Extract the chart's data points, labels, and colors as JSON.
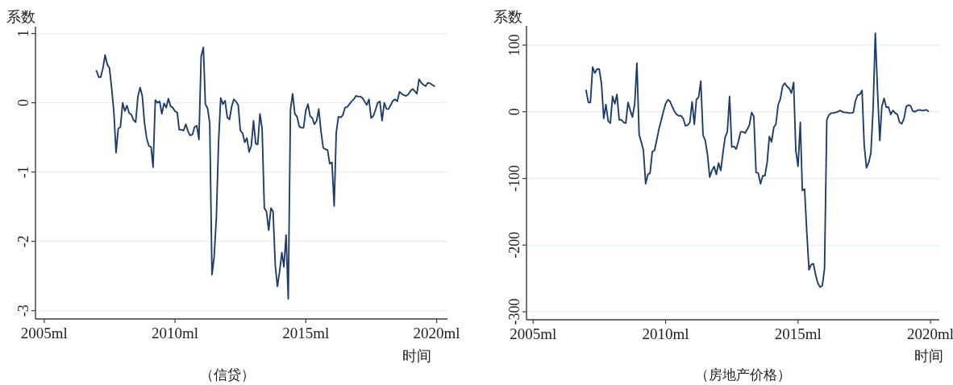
{
  "chart_data": [
    {
      "type": "line",
      "title": "（信贷）",
      "xlabel": "时间",
      "ylabel": "系数",
      "color": "#1f3d6b",
      "grid": "y",
      "xlim": [
        "2004-09",
        "2020-06"
      ],
      "ylim": [
        -3.12,
        1.1
      ],
      "xticks": [
        {
          "value": "2005-01",
          "label": "2005ml"
        },
        {
          "value": "2010-01",
          "label": "2010ml"
        },
        {
          "value": "2015-01",
          "label": "2015ml"
        },
        {
          "value": "2020-01",
          "label": "2020ml"
        }
      ],
      "yticks": [
        -3,
        -2,
        -1,
        0,
        1
      ],
      "x": [
        "2007-01",
        "2007-02",
        "2007-03",
        "2007-04",
        "2007-05",
        "2007-06",
        "2007-07",
        "2007-08",
        "2007-09",
        "2007-10",
        "2007-11",
        "2007-12",
        "2008-01",
        "2008-02",
        "2008-03",
        "2008-04",
        "2008-05",
        "2008-06",
        "2008-07",
        "2008-08",
        "2008-09",
        "2008-10",
        "2008-11",
        "2008-12",
        "2009-01",
        "2009-02",
        "2009-03",
        "2009-04",
        "2009-05",
        "2009-06",
        "2009-07",
        "2009-08",
        "2009-09",
        "2009-10",
        "2009-11",
        "2009-12",
        "2010-01",
        "2010-02",
        "2010-03",
        "2010-04",
        "2010-05",
        "2010-06",
        "2010-07",
        "2010-08",
        "2010-09",
        "2010-10",
        "2010-11",
        "2010-12",
        "2011-01",
        "2011-02",
        "2011-03",
        "2011-04",
        "2011-05",
        "2011-06",
        "2011-07",
        "2011-08",
        "2011-09",
        "2011-10",
        "2011-11",
        "2011-12",
        "2012-01",
        "2012-02",
        "2012-03",
        "2012-04",
        "2012-05",
        "2012-06",
        "2012-07",
        "2012-08",
        "2012-09",
        "2012-10",
        "2012-11",
        "2012-12",
        "2013-01",
        "2013-02",
        "2013-03",
        "2013-04",
        "2013-05",
        "2013-06",
        "2013-07",
        "2013-08",
        "2013-09",
        "2013-10",
        "2013-11",
        "2013-12",
        "2014-01",
        "2014-02",
        "2014-03",
        "2014-04",
        "2014-05",
        "2014-06",
        "2014-07",
        "2014-08",
        "2014-09",
        "2014-10",
        "2014-11",
        "2014-12",
        "2015-01",
        "2015-02",
        "2015-03",
        "2015-04",
        "2015-05",
        "2015-06",
        "2015-07",
        "2015-08",
        "2015-09",
        "2015-10",
        "2015-11",
        "2015-12",
        "2016-01",
        "2016-02",
        "2016-03",
        "2016-04",
        "2016-05",
        "2016-06",
        "2016-07",
        "2016-08",
        "2016-09",
        "2016-10",
        "2016-11",
        "2016-12",
        "2017-01",
        "2017-02",
        "2017-03",
        "2017-04",
        "2017-05",
        "2017-06",
        "2017-07",
        "2017-08",
        "2017-09",
        "2017-10",
        "2017-11",
        "2017-12",
        "2018-01",
        "2018-02",
        "2018-03",
        "2018-04",
        "2018-05",
        "2018-06",
        "2018-07",
        "2018-08",
        "2018-09",
        "2018-10",
        "2018-11",
        "2018-12",
        "2019-01",
        "2019-02",
        "2019-03",
        "2019-04",
        "2019-05",
        "2019-06",
        "2019-07",
        "2019-08",
        "2019-09",
        "2019-10",
        "2019-11",
        "2019-12"
      ],
      "values": [
        0.46,
        0.37,
        0.37,
        0.5,
        0.69,
        0.55,
        0.5,
        0.21,
        -0.14,
        -0.72,
        -0.37,
        -0.35,
        0.0,
        -0.12,
        -0.04,
        -0.15,
        -0.17,
        -0.25,
        -0.28,
        0.09,
        0.22,
        0.1,
        -0.29,
        -0.51,
        -0.62,
        -0.64,
        -0.93,
        0.04,
        0.0,
        0.02,
        -0.16,
        -0.01,
        -0.07,
        0.06,
        -0.05,
        -0.07,
        -0.12,
        -0.14,
        -0.39,
        -0.39,
        -0.4,
        -0.31,
        -0.41,
        -0.47,
        -0.46,
        -0.35,
        -0.33,
        -0.53,
        0.67,
        0.8,
        -0.02,
        -0.08,
        -0.29,
        -2.48,
        -2.23,
        -1.67,
        -0.57,
        0.07,
        -0.02,
        0.03,
        -0.21,
        -0.24,
        -0.06,
        0.05,
        0.02,
        -0.03,
        -0.4,
        -0.44,
        -0.57,
        -0.51,
        -0.71,
        -0.62,
        -0.26,
        -0.59,
        -0.6,
        -0.16,
        -0.37,
        -1.52,
        -1.57,
        -1.84,
        -1.52,
        -1.57,
        -2.35,
        -2.65,
        -2.43,
        -2.16,
        -2.37,
        -1.91,
        -2.83,
        -0.1,
        0.13,
        -0.16,
        -0.2,
        -0.34,
        -0.36,
        -0.36,
        -0.11,
        -0.02,
        -0.19,
        -0.22,
        -0.31,
        -0.26,
        -0.09,
        -0.41,
        -0.65,
        -0.67,
        -0.68,
        -0.88,
        -0.86,
        -1.49,
        -0.43,
        -0.2,
        -0.21,
        -0.18,
        -0.07,
        -0.06,
        -0.02,
        0.02,
        0.05,
        0.1,
        0.09,
        0.09,
        0.07,
        0.02,
        -0.03,
        0.05,
        -0.22,
        -0.19,
        -0.1,
        0.0,
        0.02,
        -0.26,
        0.0,
        -0.09,
        -0.09,
        -0.03,
        0.03,
        0.05,
        0.02,
        0.16,
        0.13,
        0.11,
        0.1,
        0.12,
        0.17,
        0.2,
        0.17,
        0.13,
        0.34,
        0.29,
        0.26,
        0.24,
        0.29,
        0.28,
        0.26,
        0.24
      ]
    },
    {
      "type": "line",
      "title": "（房地产价格）",
      "xlabel": "时间",
      "ylabel": "系数",
      "color": "#1f3d6b",
      "grid": "y",
      "xlim": [
        "2004-10",
        "2020-05"
      ],
      "ylim": [
        -312,
        129
      ],
      "xticks": [
        {
          "value": "2005-01",
          "label": "2005ml"
        },
        {
          "value": "2010-01",
          "label": "2010ml"
        },
        {
          "value": "2015-01",
          "label": "2015ml"
        },
        {
          "value": "2020-01",
          "label": "2020ml"
        }
      ],
      "yticks": [
        -300,
        -200,
        -100,
        0,
        100
      ],
      "x": [
        "2007-01",
        "2007-02",
        "2007-03",
        "2007-04",
        "2007-05",
        "2007-06",
        "2007-07",
        "2007-08",
        "2007-09",
        "2007-10",
        "2007-11",
        "2007-12",
        "2008-01",
        "2008-02",
        "2008-03",
        "2008-04",
        "2008-05",
        "2008-06",
        "2008-07",
        "2008-08",
        "2008-09",
        "2008-10",
        "2008-11",
        "2008-12",
        "2009-01",
        "2009-02",
        "2009-03",
        "2009-04",
        "2009-05",
        "2009-06",
        "2009-07",
        "2009-08",
        "2009-09",
        "2009-10",
        "2009-11",
        "2009-12",
        "2010-01",
        "2010-02",
        "2010-03",
        "2010-04",
        "2010-05",
        "2010-06",
        "2010-07",
        "2010-08",
        "2010-09",
        "2010-10",
        "2010-11",
        "2010-12",
        "2011-01",
        "2011-02",
        "2011-03",
        "2011-04",
        "2011-05",
        "2011-06",
        "2011-07",
        "2011-08",
        "2011-09",
        "2011-10",
        "2011-11",
        "2011-12",
        "2012-01",
        "2012-02",
        "2012-03",
        "2012-04",
        "2012-05",
        "2012-06",
        "2012-07",
        "2012-08",
        "2012-09",
        "2012-10",
        "2012-11",
        "2012-12",
        "2013-01",
        "2013-02",
        "2013-03",
        "2013-04",
        "2013-05",
        "2013-06",
        "2013-07",
        "2013-08",
        "2013-09",
        "2013-10",
        "2013-11",
        "2013-12",
        "2014-01",
        "2014-02",
        "2014-03",
        "2014-04",
        "2014-05",
        "2014-06",
        "2014-07",
        "2014-08",
        "2014-09",
        "2014-10",
        "2014-11",
        "2014-12",
        "2015-01",
        "2015-02",
        "2015-03",
        "2015-04",
        "2015-05",
        "2015-06",
        "2015-07",
        "2015-08",
        "2015-09",
        "2015-10",
        "2015-11",
        "2015-12",
        "2016-01",
        "2016-02",
        "2016-03",
        "2016-04",
        "2016-05",
        "2016-06",
        "2016-07",
        "2016-08",
        "2016-09",
        "2016-10",
        "2016-11",
        "2016-12",
        "2017-01",
        "2017-02",
        "2017-03",
        "2017-04",
        "2017-05",
        "2017-06",
        "2017-07",
        "2017-08",
        "2017-09",
        "2017-10",
        "2017-11",
        "2017-12",
        "2018-01",
        "2018-02",
        "2018-03",
        "2018-04",
        "2018-05",
        "2018-06",
        "2018-07",
        "2018-08",
        "2018-09",
        "2018-10",
        "2018-11",
        "2018-12",
        "2019-01",
        "2019-02",
        "2019-03",
        "2019-04",
        "2019-05",
        "2019-06",
        "2019-07",
        "2019-08",
        "2019-09",
        "2019-10",
        "2019-11",
        "2019-12"
      ],
      "values": [
        32,
        14,
        14,
        67,
        58,
        64,
        64,
        42,
        -10,
        11,
        -14,
        -17,
        23,
        12,
        26,
        -12,
        -12,
        -16,
        -17,
        14,
        2,
        -8,
        12,
        73,
        -34,
        -46,
        -58,
        -108,
        -94,
        -92,
        -60,
        -58,
        -42,
        -26,
        -13,
        0,
        12,
        18,
        16,
        8,
        1,
        -4,
        -6,
        -6,
        -10,
        -21,
        -20,
        -16,
        15,
        -19,
        18,
        22,
        46,
        -35,
        -43,
        -64,
        -98,
        -88,
        -82,
        -94,
        -77,
        -88,
        -62,
        -38,
        -30,
        23,
        -53,
        -52,
        -56,
        -44,
        -30,
        -30,
        -32,
        -26,
        -20,
        -1,
        -7,
        -91,
        -92,
        -108,
        -96,
        -96,
        -76,
        -37,
        -45,
        -23,
        -19,
        10,
        19,
        38,
        43,
        38,
        35,
        28,
        44,
        -58,
        -82,
        -16,
        -118,
        -116,
        -180,
        -237,
        -229,
        -228,
        -245,
        -257,
        -263,
        -261,
        -235,
        -12,
        -5,
        -2,
        -2,
        -1,
        0,
        2,
        0,
        -1,
        -1,
        -2,
        -2,
        -1,
        16,
        25,
        26,
        32,
        -50,
        -84,
        -76,
        -62,
        6,
        118,
        30,
        -43,
        8,
        20,
        7,
        7,
        -4,
        2,
        -2,
        -4,
        -16,
        -18,
        -10,
        8,
        10,
        9,
        1,
        0,
        2,
        3,
        2,
        2,
        3,
        1
      ]
    }
  ]
}
